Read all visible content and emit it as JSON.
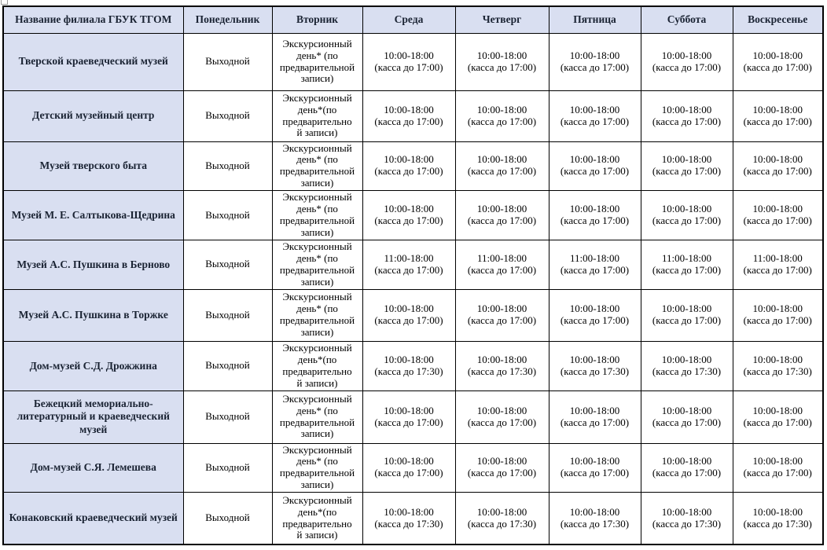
{
  "colors": {
    "header_bg": "#d9dff1",
    "border": "#000000",
    "header_text": "#1a2333",
    "body_text": "#000000"
  },
  "table": {
    "headers": [
      "Название филиала ГБУК ТГОМ",
      "Понедельник",
      "Вторник",
      "Среда",
      "Четверг",
      "Пятница",
      "Суббота",
      "Воскресенье"
    ],
    "rows": [
      {
        "cells": [
          "Тверской краеведческий музей",
          "Выходной",
          "Экскурсионный\nдень* (по\nпредварительной\nзаписи)",
          "10:00-18:00\n(касса до 17:00)",
          "10:00-18:00\n(касса до 17:00)",
          "10:00-18:00\n(касса до 17:00)",
          "10:00-18:00\n(касса до 17:00)",
          "10:00-18:00\n(касса до 17:00)"
        ]
      },
      {
        "cells": [
          "Детский музейный центр",
          "Выходной",
          "Экскурсионный\nдень*(по\nпредварительно\nй записи)",
          "10:00-18:00\n(касса до 17:00)",
          "10:00-18:00\n(касса до 17:00)",
          "10:00-18:00\n(касса до 17:00)",
          "10:00-18:00\n(касса до 17:00)",
          "10:00-18:00\n(касса до 17:00)"
        ]
      },
      {
        "cells": [
          "Музей тверского быта",
          "Выходной",
          "Экскурсионный\nдень* (по\nпредварительной\nзаписи)",
          "10:00-18:00\n(касса до 17:00)",
          "10:00-18:00\n(касса до 17:00)",
          "10:00-18:00\n(касса до 17:00)",
          "10:00-18:00\n(касса до 17:00)",
          "10:00-18:00\n(касса до 17:00)"
        ]
      },
      {
        "cells": [
          "Музей М. Е. Салтыкова-Щедрина",
          "Выходной",
          "Экскурсионный\nдень* (по\nпредварительной\nзаписи)",
          "10:00-18:00\n(касса до 17:00)",
          "10:00-18:00\n(касса до 17:00)",
          "10:00-18:00\n(касса до 17:00)",
          "10:00-18:00\n(касса до 17:00)",
          "10:00-18:00\n(касса до 17:00)"
        ]
      },
      {
        "cells": [
          "Музей А.С. Пушкина в Берново",
          "Выходной",
          "Экскурсионный\nдень* (по\nпредварительной\nзаписи)",
          "11:00-18:00\n(касса до 17:00)",
          "11:00-18:00\n(касса до 17:00)",
          "11:00-18:00\n(касса до 17:00)",
          "11:00-18:00\n(касса до 17:00)",
          "11:00-18:00\n(касса до 17:00)"
        ]
      },
      {
        "cells": [
          "Музей А.С. Пушкина в Торжке",
          "Выходной",
          "Экскурсионный\nдень* (по\nпредварительной\nзаписи)",
          "10:00-18:00\n(касса до 17:00)",
          "10:00-18:00\n(касса до 17:00)",
          "10:00-18:00\n(касса до 17:00)",
          "10:00-18:00\n(касса до 17:00)",
          "10:00-18:00\n(касса до 17:00)"
        ]
      },
      {
        "cells": [
          "Дом-музей С.Д. Дрожжина",
          "Выходной",
          "Экскурсионный\nдень*(по\nпредварительно\nй записи)",
          "10:00-18:00\n(касса до 17:30)",
          "10:00-18:00\n(касса до 17:30)",
          "10:00-18:00\n(касса до 17:30)",
          "10:00-18:00\n(касса до 17:30)",
          "10:00-18:00\n(касса до 17:30)"
        ]
      },
      {
        "cells": [
          "Бежецкий мемориально-\nлитературный и краеведческий\nмузей",
          "Выходной",
          "Экскурсионный\nдень* (по\nпредварительной\nзаписи)",
          "10:00-18:00\n(касса до 17:00)",
          "10:00-18:00\n(касса до 17:00)",
          "10:00-18:00\n(касса до 17:00)",
          "10:00-18:00\n(касса до 17:00)",
          "10:00-18:00\n(касса до 17:00)"
        ]
      },
      {
        "cells": [
          "Дом-музей С.Я. Лемешева",
          "Выходной",
          "Экскурсионный\nдень* (по\nпредварительной\nзаписи)",
          "10:00-18:00\n(касса до 17:00)",
          "10:00-18:00\n(касса до 17:00)",
          "10:00-18:00\n(касса до 17:00)",
          "10:00-18:00\n(касса до 17:00)",
          "10:00-18:00\n(касса до 17:00)"
        ]
      },
      {
        "cells": [
          "Конаковский краеведческий музей",
          "Выходной",
          "Экскурсионный\nдень*(по\nпредварительно\nй записи)",
          "10:00-18:00\n(касса до 17:30)",
          "10:00-18:00\n(касса до 17:30)",
          "10:00-18:00\n(касса до 17:30)",
          "10:00-18:00\n(касса до 17:30)",
          "10:00-18:00\n(касса до 17:30)"
        ]
      }
    ]
  }
}
